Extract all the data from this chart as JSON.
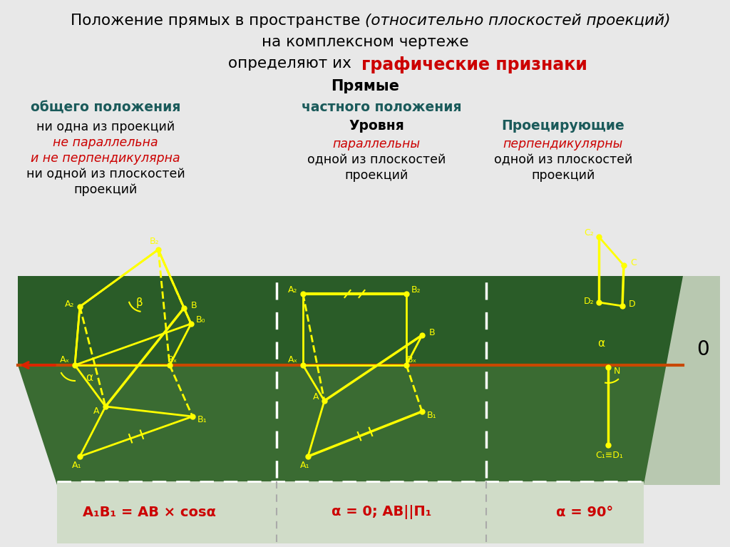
{
  "bg_color": "#e8e8e8",
  "green_dark": "#2a5c28",
  "green_mid": "#3a6b32",
  "green_light_panel": "#b8c8b0",
  "yellow": "#ffff00",
  "red": "#cc0000",
  "teal": "#1a6b6b",
  "dark_teal": "#1a5555",
  "orange_line": "#c84800",
  "white": "#ffffff",
  "title1_normal": "Положение прямых в пространстве ",
  "title1_italic": "(относительно плоскостей проекций)",
  "title2": "на комплексном чертеже",
  "title3_normal": "определяют их  ",
  "title3_red": "графические признаки",
  "subtitle": "Прямые",
  "col1_hdr": "общего положения",
  "col1_t1": "ни одна из проекций",
  "col1_t2": "не параллельна",
  "col1_t3": "и не перпендикулярна",
  "col1_t4": "ни одной из плоскостей",
  "col1_t5": "проекций",
  "col2_hdr": "частного положения",
  "col2_sub1": "Уровня",
  "col2_r1": "параллельны",
  "col2_t1": "одной из плоскостей",
  "col2_t2": "проекций",
  "col3_sub1": "Проецирующие",
  "col3_r1": "перпендикулярны",
  "col3_t1": "одной из плоскостей",
  "col3_t2": "проекций",
  "f1": "A₁B₁ = AB × cosα",
  "f2": "α = 0; AB||П₁",
  "f3": "α = 90°"
}
